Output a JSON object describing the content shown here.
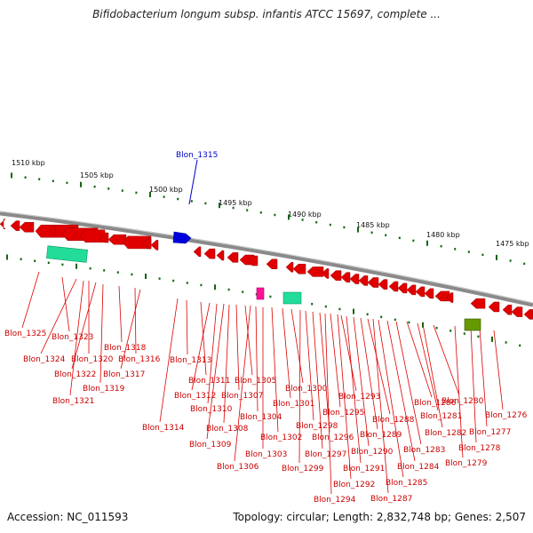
{
  "title": "Bifidobacterium longum subsp. infantis ATCC 15697, complete ...",
  "accession": "Accession: NC_011593",
  "topology": "Topology: circular; Length: 2,832,748 bp; Genes: 2,507",
  "scale_labels": [
    "1510 kbp",
    "1505 kbp",
    "1500 kbp",
    "1495 kbp",
    "1490 kbp",
    "1485 kbp",
    "1480 kbp",
    "1475 kbp"
  ],
  "highlight_gene": "Blon_1315",
  "gene_labels": [
    "Blon_1325",
    "Blon_1323",
    "Blon_1324",
    "Blon_1320",
    "Blon_1316",
    "Blon_1318",
    "Blon_1322",
    "Blon_1317",
    "Blon_1319",
    "Blon_1321",
    "Blon_1313",
    "Blon_1311",
    "Blon_1305",
    "Blon_1312",
    "Blon_1307",
    "Blon_1310",
    "Blon_1304",
    "Blon_1314",
    "Blon_1308",
    "Blon_1309",
    "Blon_1303",
    "Blon_1306",
    "Blon_1300",
    "Blon_1301",
    "Blon_1298",
    "Blon_1302",
    "Blon_1293",
    "Blon_1295",
    "Blon_1296",
    "Blon_1297",
    "Blon_1299",
    "Blon_1290",
    "Blon_1291",
    "Blon_1292",
    "Blon_1294",
    "Blon_1286",
    "Blon_1288",
    "Blon_1289",
    "Blon_1281",
    "Blon_1282",
    "Blon_1283",
    "Blon_1284",
    "Blon_1285",
    "Blon_1287",
    "Blon_1280",
    "Blon_1276",
    "Blon_1277",
    "Blon_1278",
    "Blon_1279"
  ],
  "colors": {
    "cds": "#e00000",
    "highlight": "#0000cc",
    "rrna": "#22cc99",
    "trna": "#ff1199",
    "misc": "#669900",
    "tick": "#116611",
    "track": "#888888"
  }
}
